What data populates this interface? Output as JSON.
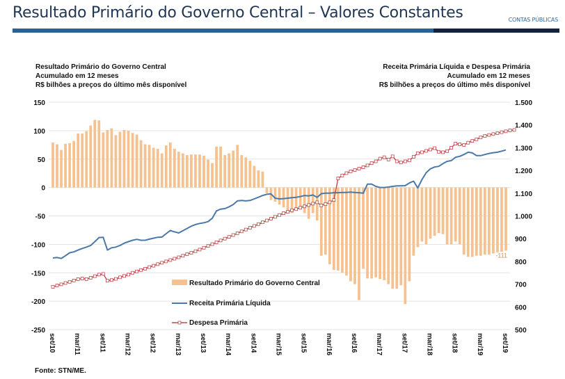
{
  "header": {
    "title": "Resultado Primário do Governo Central – Valores Constantes",
    "tag": "CONTAS PÚBLICAS",
    "colors": {
      "band_primary": "#2a6296",
      "band_dark": "#13233e"
    }
  },
  "left_axis_title": [
    "Resultado Primário do Governo Central",
    "Acumulado em 12 meses",
    "R$ bilhões a preços do último mês disponível"
  ],
  "right_axis_title": [
    "Receita Primária Líquida e Despesa Primária",
    "Acumulado em 12 meses",
    "R$ bilhões a preços do último mês disponível"
  ],
  "source": "Fonte: STN/ME.",
  "chart_data": {
    "type": "bar+line",
    "title": "Resultado Primário do Governo Central – Valores Constantes",
    "start_month": "set/10",
    "end_month": "set/19",
    "x_tick_labels": [
      "set/10",
      "mar/11",
      "set/11",
      "mar/12",
      "set/12",
      "mar/13",
      "set/13",
      "mar/14",
      "set/14",
      "mar/15",
      "set/15",
      "mar/16",
      "set/16",
      "mar/17",
      "set/17",
      "mar/18",
      "set/18",
      "mar/19",
      "set/19"
    ],
    "left_axis": {
      "ylim": [
        -250,
        150
      ],
      "ticks": [
        150,
        100,
        50,
        0,
        -50,
        -100,
        -150,
        -200,
        -250
      ],
      "label": "R$ bilhões"
    },
    "right_axis": {
      "ylim": [
        500,
        1500
      ],
      "ticks": [
        1500,
        1400,
        1300,
        1200,
        1100,
        1000,
        900,
        800,
        700,
        600,
        500
      ],
      "tick_labels": [
        "1.500",
        "1.400",
        "1.300",
        "1.200",
        "1.100",
        "1.000",
        "900",
        "800",
        "700",
        "600",
        "500"
      ],
      "label": "R$ bilhões"
    },
    "grid": true,
    "legend_placement": "center-bottom",
    "annotation": {
      "text": "-111",
      "series": "Resultado Primário do Governo Central",
      "position": "last"
    },
    "series": [
      {
        "name": "Resultado Primário do Governo Central",
        "type": "bar",
        "axis": "left",
        "color": "#f5c18e",
        "values": [
          79,
          76,
          66,
          77,
          78,
          82,
          95,
          95,
          99,
          109,
          119,
          118,
          97,
          101,
          104,
          92,
          98,
          101,
          100,
          96,
          93,
          83,
          76,
          75,
          70,
          68,
          60,
          74,
          79,
          68,
          63,
          60,
          57,
          58,
          58,
          58,
          56,
          49,
          43,
          72,
          72,
          57,
          60,
          65,
          75,
          57,
          53,
          47,
          38,
          30,
          28,
          -10,
          -22,
          -25,
          -30,
          -35,
          -40,
          -45,
          -38,
          -35,
          -45,
          -55,
          -45,
          -58,
          -120,
          -118,
          -135,
          -145,
          -146,
          -150,
          -155,
          -165,
          -170,
          -198,
          -143,
          -160,
          -160,
          -158,
          -161,
          -163,
          -170,
          -178,
          -178,
          -172,
          -205,
          -165,
          -120,
          -105,
          -95,
          -100,
          -90,
          -85,
          -80,
          -82,
          -100,
          -100,
          -95,
          -100,
          -118,
          -122,
          -122,
          -120,
          -120,
          -118,
          -118,
          -116,
          -114,
          -113,
          -111
        ]
      },
      {
        "name": "Receita Primária Líquida",
        "type": "line",
        "axis": "right",
        "color": "#4a78a8",
        "values": [
          815,
          817,
          813,
          825,
          838,
          842,
          850,
          857,
          863,
          870,
          887,
          905,
          906,
          850,
          860,
          863,
          870,
          880,
          887,
          893,
          897,
          893,
          893,
          898,
          902,
          906,
          907,
          922,
          936,
          930,
          925,
          935,
          945,
          955,
          962,
          967,
          970,
          975,
          990,
          1022,
          1030,
          1032,
          1040,
          1050,
          1066,
          1068,
          1066,
          1068,
          1075,
          1082,
          1090,
          1095,
          1097,
          1078,
          1075,
          1076,
          1078,
          1080,
          1082,
          1085,
          1090,
          1088,
          1092,
          1082,
          1098,
          1100,
          1100,
          1102,
          1102,
          1103,
          1103,
          1105,
          1103,
          1102,
          1100,
          1140,
          1140,
          1130,
          1125,
          1125,
          1127,
          1130,
          1132,
          1132,
          1133,
          1145,
          1153,
          1123,
          1160,
          1190,
          1207,
          1215,
          1218,
          1230,
          1240,
          1243,
          1258,
          1262,
          1270,
          1280,
          1277,
          1265,
          1265,
          1270,
          1275,
          1278,
          1280,
          1285,
          1290
        ]
      },
      {
        "name": "Despesa Primária",
        "type": "line",
        "axis": "right",
        "color": "#b84a4a",
        "values": [
          688,
          694,
          699,
          705,
          710,
          716,
          722,
          725,
          722,
          728,
          735,
          742,
          745,
          715,
          718,
          723,
          730,
          736,
          742,
          750,
          756,
          762,
          768,
          775,
          781,
          788,
          794,
          800,
          806,
          812,
          818,
          825,
          832,
          838,
          845,
          852,
          860,
          868,
          876,
          884,
          892,
          900,
          908,
          916,
          924,
          932,
          940,
          948,
          956,
          964,
          972,
          980,
          988,
          996,
          1004,
          1012,
          1018,
          1025,
          1030,
          1036,
          1042,
          1048,
          1054,
          1060,
          1046,
          1052,
          1060,
          1070,
          1165,
          1178,
          1188,
          1196,
          1202,
          1208,
          1214,
          1222,
          1232,
          1240,
          1252,
          1258,
          1248,
          1262,
          1240,
          1235,
          1240,
          1245,
          1260,
          1276,
          1280,
          1286,
          1292,
          1298,
          1282,
          1280,
          1285,
          1300,
          1318,
          1315,
          1312,
          1322,
          1330,
          1337,
          1345,
          1352,
          1356,
          1360,
          1364,
          1368,
          1372,
          1376,
          1378
        ]
      }
    ]
  }
}
